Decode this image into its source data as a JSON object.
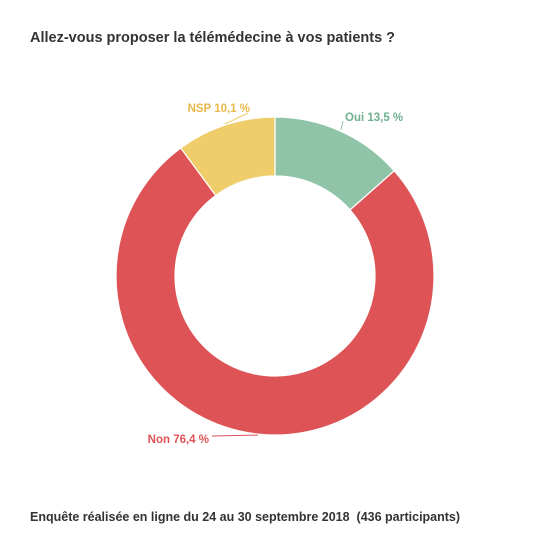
{
  "chart_data": {
    "type": "pie",
    "title": "Allez-vous proposer la télémédecine à vos patients ?",
    "footer": "Enquête réalisée en ligne du 24 au 30 septembre 2018  (436 participants)",
    "donut": true,
    "slices": [
      {
        "category": "Oui",
        "value": 13.5,
        "label": "Oui 13,5 %",
        "color": "#8fc4a8"
      },
      {
        "category": "Non",
        "value": 76.4,
        "label": "Non 76,4 %",
        "color": "#de5356"
      },
      {
        "category": "NSP",
        "value": 10.1,
        "label": "NSP 10,1 %",
        "color": "#f0cd6b"
      }
    ]
  }
}
